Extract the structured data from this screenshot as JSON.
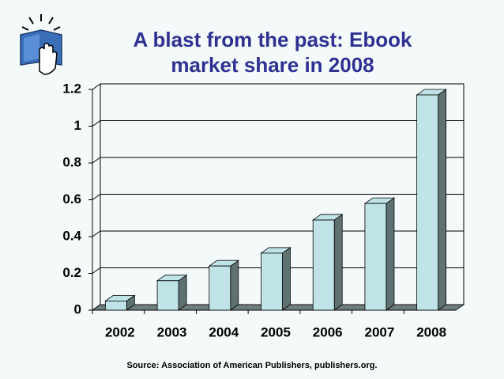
{
  "chart_data": {
    "type": "bar3d",
    "title": "A blast from the past:  Ebook market share in 2008",
    "categories": [
      "2002",
      "2003",
      "2004",
      "2005",
      "2006",
      "2007",
      "2008"
    ],
    "values": [
      0.05,
      0.16,
      0.24,
      0.31,
      0.49,
      0.58,
      1.17
    ],
    "color": "#bfe3e6",
    "side_color": "#5f7272",
    "ylim": [
      0,
      1.2
    ],
    "yticks": [
      0,
      0.2,
      0.4,
      0.6,
      0.8,
      1,
      1.2
    ],
    "grid": true,
    "source": "Source: Association of American Publishers, publishers.org."
  }
}
